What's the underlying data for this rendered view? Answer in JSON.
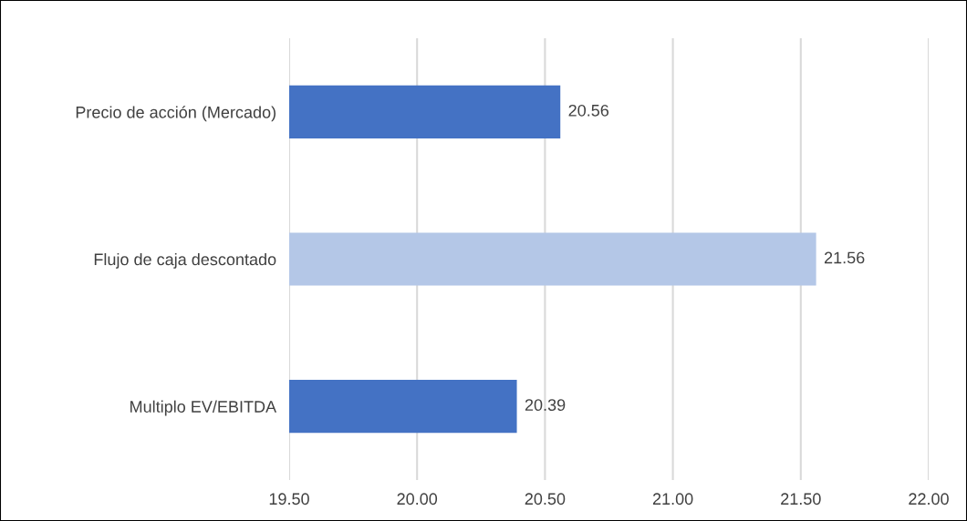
{
  "chart_data": {
    "type": "bar",
    "orientation": "horizontal",
    "categories": [
      "Precio de acción (Mercado)",
      "Flujo de caja descontado",
      "Multiplo EV/EBITDA"
    ],
    "values": [
      20.56,
      21.56,
      20.39
    ],
    "colors": [
      "#4472c4",
      "#b4c7e7",
      "#4472c4"
    ],
    "xlim": [
      19.5,
      22.0
    ],
    "xticks": [
      {
        "value": 19.5,
        "label": "19.50"
      },
      {
        "value": 20.0,
        "label": "20.00"
      },
      {
        "value": 20.5,
        "label": "20.50"
      },
      {
        "value": 21.0,
        "label": "21.00"
      },
      {
        "value": 21.5,
        "label": "21.50"
      },
      {
        "value": 22.0,
        "label": "22.00"
      }
    ],
    "grid": "x",
    "data_labels": true
  }
}
